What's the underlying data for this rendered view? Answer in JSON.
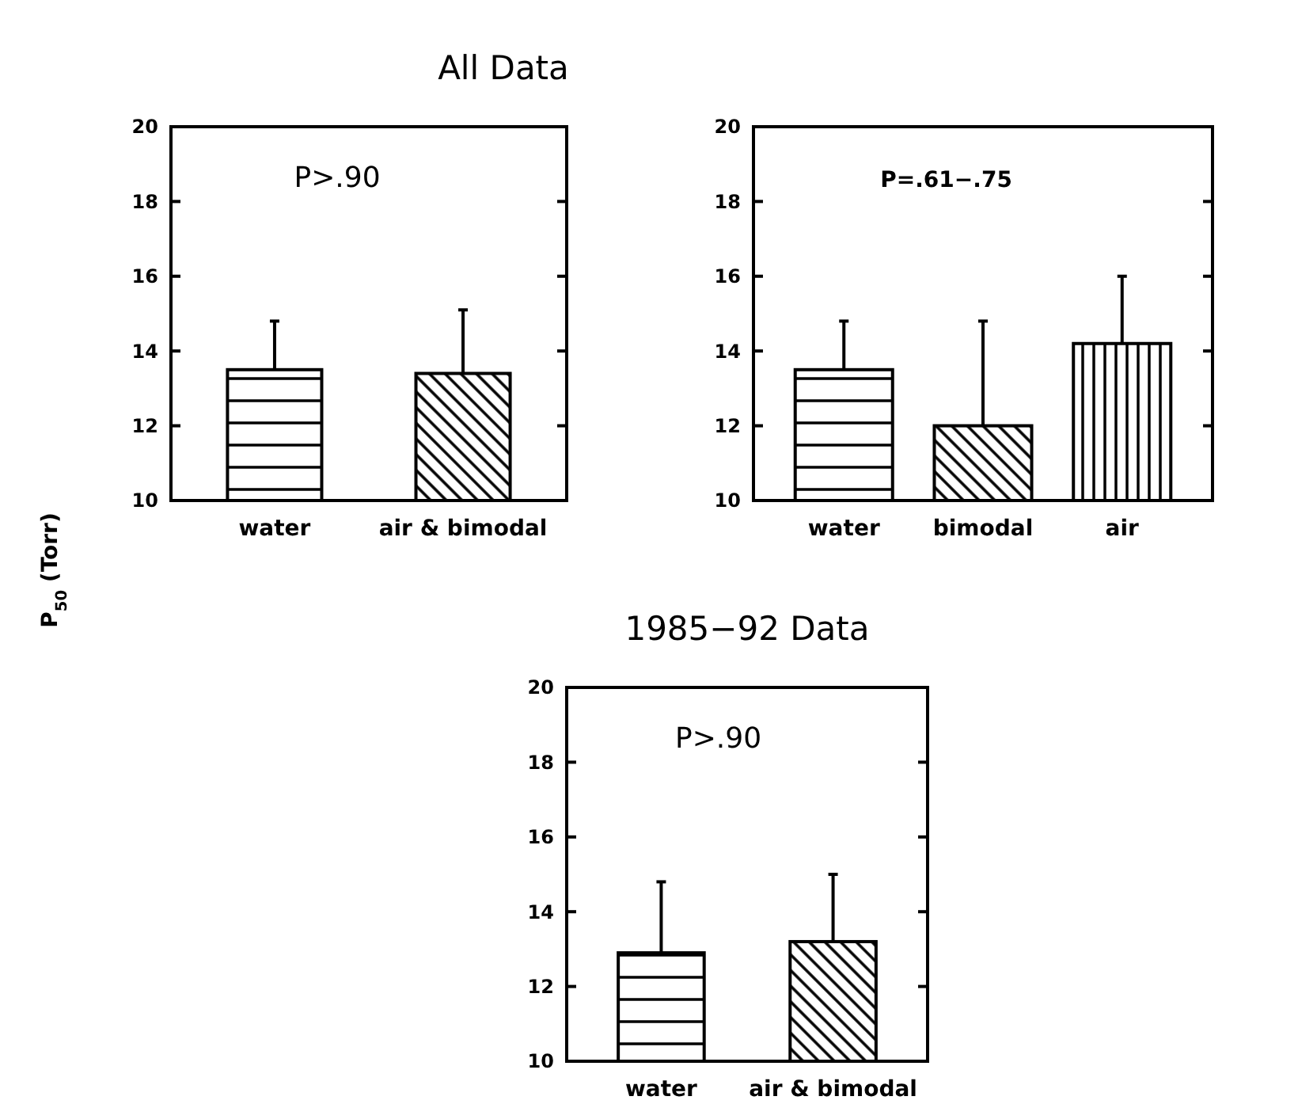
{
  "chart_data": [
    {
      "type": "bar",
      "title": "All Data",
      "ylabel": "P$_{50}$   (Torr)",
      "categories": [
        "water",
        "air & bimodal"
      ],
      "values": [
        13.5,
        13.4
      ],
      "colors": [
        "#000000",
        "#000000"
      ],
      "errors": [
        [
          13.5,
          14.8
        ],
        [
          13.4,
          15.1
        ]
      ],
      "ylim": [
        10,
        20
      ],
      "yticks": [
        10,
        12,
        14,
        16,
        18,
        20
      ],
      "annotations": [
        "P>.90"
      ]
    },
    {
      "type": "bar",
      "categories": [
        "water",
        "bimodal",
        "air"
      ],
      "values": [
        13.5,
        12.0,
        14.2
      ],
      "colors": [
        "#000000",
        "#000000",
        "#000000"
      ],
      "errors": [
        [
          13.5,
          14.8
        ],
        [
          12.0,
          14.8
        ],
        [
          14.2,
          16.0
        ]
      ],
      "ylim": [
        10,
        20
      ],
      "yticks": [
        10,
        12,
        14,
        16,
        18,
        20
      ],
      "annotations": [
        "P=.61−.75"
      ]
    },
    {
      "type": "bar",
      "title": "1985−92 Data",
      "categories": [
        "water",
        "air & bimodal"
      ],
      "values": [
        12.9,
        13.2
      ],
      "colors": [
        "#000000",
        "#000000"
      ],
      "errors": [
        [
          12.9,
          14.8
        ],
        [
          13.2,
          15.0
        ]
      ],
      "ylim": [
        10,
        20
      ],
      "yticks": [
        10,
        12,
        14,
        16,
        18,
        20
      ],
      "annotations": [
        "P>.90"
      ]
    }
  ]
}
